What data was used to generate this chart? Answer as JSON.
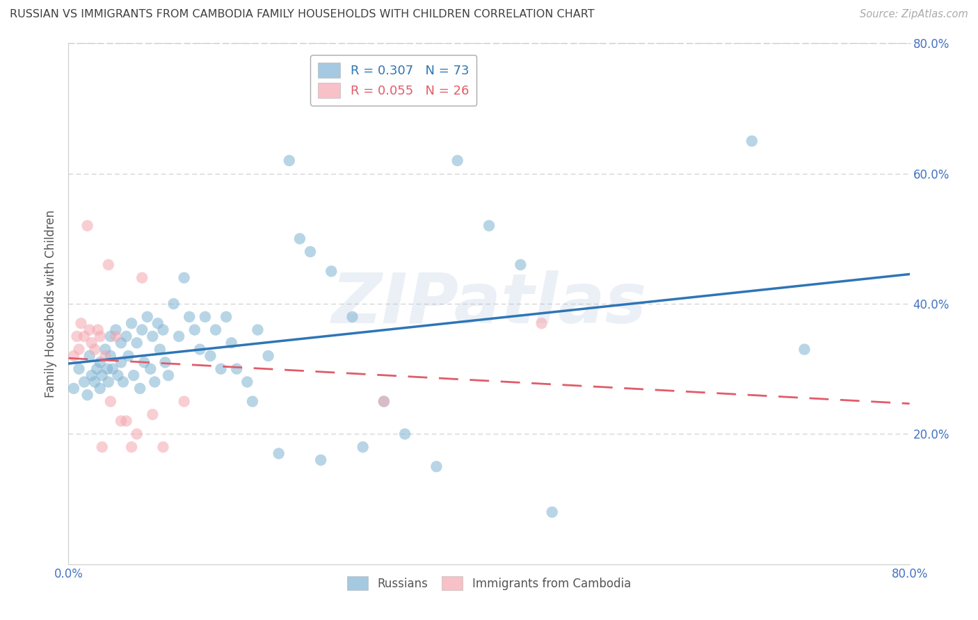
{
  "title": "RUSSIAN VS IMMIGRANTS FROM CAMBODIA FAMILY HOUSEHOLDS WITH CHILDREN CORRELATION CHART",
  "source": "Source: ZipAtlas.com",
  "ylabel": "Family Households with Children",
  "xlim": [
    0.0,
    0.8
  ],
  "ylim": [
    0.0,
    0.8
  ],
  "x_tick_positions": [
    0.0,
    0.1,
    0.2,
    0.3,
    0.4,
    0.5,
    0.6,
    0.7,
    0.8
  ],
  "x_tick_labels": [
    "0.0%",
    "",
    "",
    "",
    "",
    "",
    "",
    "",
    "80.0%"
  ],
  "y_tick_positions": [
    0.2,
    0.4,
    0.6,
    0.8
  ],
  "y_tick_labels": [
    "20.0%",
    "40.0%",
    "60.0%",
    "80.0%"
  ],
  "russian_color": "#7fb3d3",
  "cambodia_color": "#f4a7b0",
  "trend_russian_color": "#2e75b6",
  "trend_cambodia_color": "#e05c6a",
  "background_color": "#ffffff",
  "grid_color": "#d3d3d3",
  "title_color": "#404040",
  "axis_label_color": "#4472c4",
  "watermark": "ZIPatlas",
  "legend_r_russian": "R = 0.307",
  "legend_n_russian": "N = 73",
  "legend_r_cambodia": "R = 0.055",
  "legend_n_cambodia": "N = 26",
  "russians_x": [
    0.005,
    0.01,
    0.015,
    0.018,
    0.02,
    0.022,
    0.025,
    0.027,
    0.03,
    0.03,
    0.032,
    0.035,
    0.037,
    0.038,
    0.04,
    0.04,
    0.042,
    0.045,
    0.047,
    0.05,
    0.05,
    0.052,
    0.055,
    0.057,
    0.06,
    0.062,
    0.065,
    0.068,
    0.07,
    0.072,
    0.075,
    0.078,
    0.08,
    0.082,
    0.085,
    0.087,
    0.09,
    0.092,
    0.095,
    0.1,
    0.105,
    0.11,
    0.115,
    0.12,
    0.125,
    0.13,
    0.135,
    0.14,
    0.145,
    0.15,
    0.155,
    0.16,
    0.17,
    0.175,
    0.18,
    0.19,
    0.2,
    0.21,
    0.22,
    0.23,
    0.24,
    0.25,
    0.27,
    0.28,
    0.3,
    0.32,
    0.35,
    0.37,
    0.4,
    0.43,
    0.46,
    0.65,
    0.7
  ],
  "russians_y": [
    0.27,
    0.3,
    0.28,
    0.26,
    0.32,
    0.29,
    0.28,
    0.3,
    0.31,
    0.27,
    0.29,
    0.33,
    0.3,
    0.28,
    0.35,
    0.32,
    0.3,
    0.36,
    0.29,
    0.34,
    0.31,
    0.28,
    0.35,
    0.32,
    0.37,
    0.29,
    0.34,
    0.27,
    0.36,
    0.31,
    0.38,
    0.3,
    0.35,
    0.28,
    0.37,
    0.33,
    0.36,
    0.31,
    0.29,
    0.4,
    0.35,
    0.44,
    0.38,
    0.36,
    0.33,
    0.38,
    0.32,
    0.36,
    0.3,
    0.38,
    0.34,
    0.3,
    0.28,
    0.25,
    0.36,
    0.32,
    0.17,
    0.62,
    0.5,
    0.48,
    0.16,
    0.45,
    0.38,
    0.18,
    0.25,
    0.2,
    0.15,
    0.62,
    0.52,
    0.46,
    0.08,
    0.65,
    0.33
  ],
  "cambodia_x": [
    0.005,
    0.008,
    0.01,
    0.012,
    0.015,
    0.018,
    0.02,
    0.022,
    0.025,
    0.028,
    0.03,
    0.032,
    0.035,
    0.038,
    0.04,
    0.045,
    0.05,
    0.055,
    0.06,
    0.065,
    0.07,
    0.08,
    0.09,
    0.11,
    0.3,
    0.45
  ],
  "cambodia_y": [
    0.32,
    0.35,
    0.33,
    0.37,
    0.35,
    0.52,
    0.36,
    0.34,
    0.33,
    0.36,
    0.35,
    0.18,
    0.32,
    0.46,
    0.25,
    0.35,
    0.22,
    0.22,
    0.18,
    0.2,
    0.44,
    0.23,
    0.18,
    0.25,
    0.25,
    0.37
  ]
}
